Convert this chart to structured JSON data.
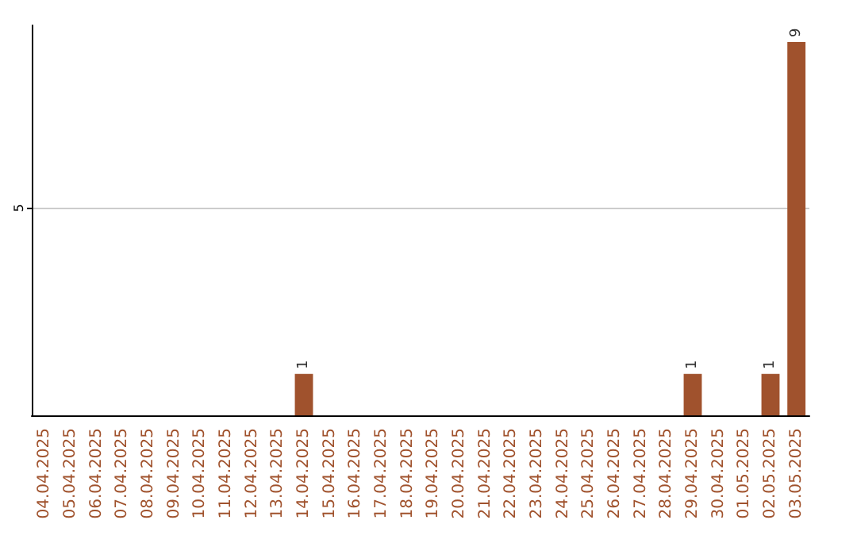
{
  "chart_data": {
    "type": "bar",
    "categories": [
      "04.04.2025",
      "05.04.2025",
      "06.04.2025",
      "07.04.2025",
      "08.04.2025",
      "09.04.2025",
      "10.04.2025",
      "11.04.2025",
      "12.04.2025",
      "13.04.2025",
      "14.04.2025",
      "15.04.2025",
      "16.04.2025",
      "17.04.2025",
      "18.04.2025",
      "19.04.2025",
      "20.04.2025",
      "21.04.2025",
      "22.04.2025",
      "23.04.2025",
      "24.04.2025",
      "25.04.2025",
      "26.04.2025",
      "27.04.2025",
      "28.04.2025",
      "29.04.2025",
      "30.04.2025",
      "01.05.2025",
      "02.05.2025",
      "03.05.2025"
    ],
    "values": [
      0,
      0,
      0,
      0,
      0,
      0,
      0,
      0,
      0,
      0,
      1,
      0,
      0,
      0,
      0,
      0,
      0,
      0,
      0,
      0,
      0,
      0,
      0,
      0,
      0,
      1,
      0,
      0,
      1,
      9
    ],
    "value_labels": [
      null,
      null,
      null,
      null,
      null,
      null,
      null,
      null,
      null,
      null,
      "1",
      null,
      null,
      null,
      null,
      null,
      null,
      null,
      null,
      null,
      null,
      null,
      null,
      null,
      null,
      "1",
      null,
      null,
      "1",
      "9"
    ],
    "color": "#a0522d",
    "ylim": [
      0,
      9.4
    ],
    "yticks": [
      5
    ],
    "grid": "y"
  }
}
